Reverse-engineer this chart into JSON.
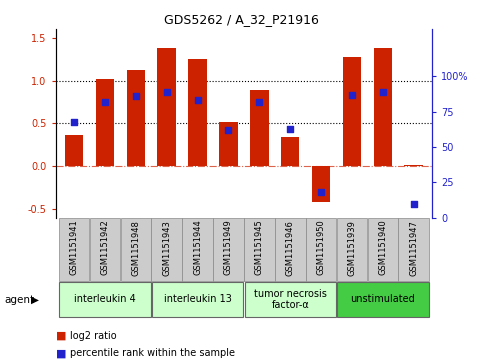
{
  "title": "GDS5262 / A_32_P21916",
  "samples": [
    "GSM1151941",
    "GSM1151942",
    "GSM1151948",
    "GSM1151943",
    "GSM1151944",
    "GSM1151949",
    "GSM1151945",
    "GSM1151946",
    "GSM1151950",
    "GSM1151939",
    "GSM1151940",
    "GSM1151947"
  ],
  "log2_ratio": [
    0.37,
    1.02,
    1.12,
    1.38,
    1.25,
    0.52,
    0.89,
    0.34,
    -0.42,
    1.27,
    1.38,
    0.02
  ],
  "percentile": [
    68,
    82,
    86,
    89,
    83,
    62,
    82,
    63,
    18,
    87,
    89,
    10
  ],
  "bar_color": "#cc2200",
  "dot_color": "#2222cc",
  "agent_groups": [
    {
      "label": "interleukin 4",
      "start": 0,
      "end": 3,
      "color": "#ccffcc"
    },
    {
      "label": "interleukin 13",
      "start": 3,
      "end": 6,
      "color": "#ccffcc"
    },
    {
      "label": "tumor necrosis\nfactor-α",
      "start": 6,
      "end": 9,
      "color": "#ccffcc"
    },
    {
      "label": "unstimulated",
      "start": 9,
      "end": 12,
      "color": "#44cc44"
    }
  ],
  "ylim_left": [
    -0.6,
    1.6
  ],
  "ylim_right": [
    0,
    133.33
  ],
  "yticks_left": [
    -0.5,
    0.0,
    0.5,
    1.0,
    1.5
  ],
  "yticks_right": [
    0,
    25,
    50,
    75,
    100
  ],
  "ytick_right_labels": [
    "0",
    "25",
    "50",
    "75",
    "100%"
  ],
  "hlines": [
    0.5,
    1.0
  ],
  "zero_line": 0.0,
  "agent_label": "agent",
  "legend_bar_label": "log2 ratio",
  "legend_dot_label": "percentile rank within the sample",
  "sample_box_color": "#cccccc",
  "sample_box_edge": "#888888",
  "fig_bg": "#ffffff",
  "plot_bg": "#ffffff",
  "title_fontsize": 9,
  "tick_fontsize": 7,
  "sample_fontsize": 6,
  "agent_fontsize": 7,
  "legend_fontsize": 7
}
